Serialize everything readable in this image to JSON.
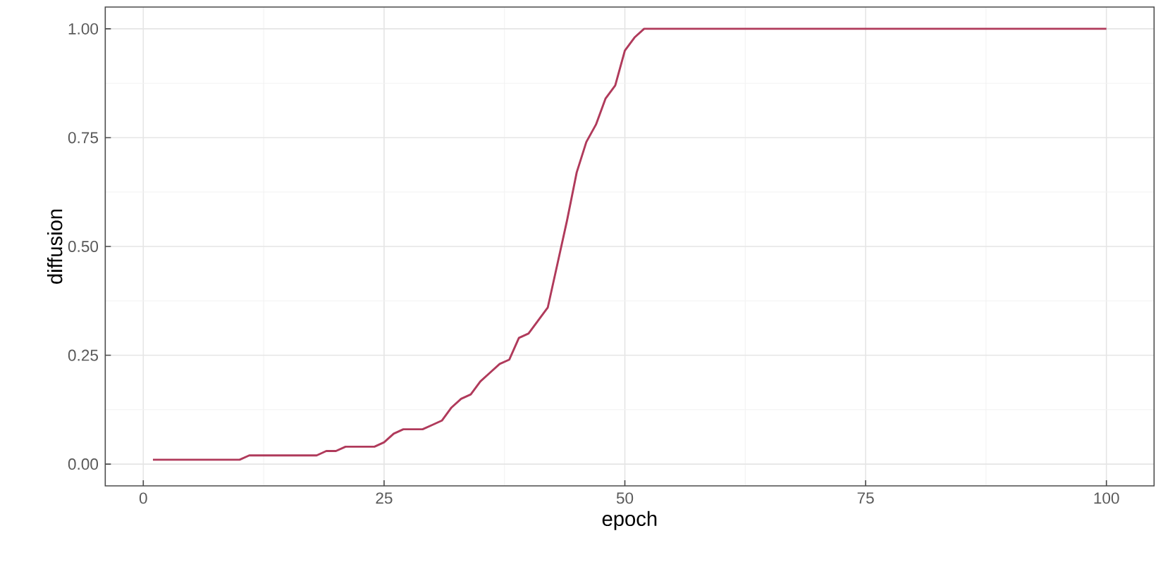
{
  "chart_data": {
    "type": "line",
    "xlabel": "epoch",
    "ylabel": "diffusion",
    "grid": true,
    "xlim": [
      -3.95,
      104.95
    ],
    "ylim": [
      -0.05,
      1.05
    ],
    "xticks": [
      0,
      25,
      50,
      75,
      100
    ],
    "yticks": [
      {
        "value": 0,
        "label": "0.00"
      },
      {
        "value": 0.25,
        "label": "0.25"
      },
      {
        "value": 0.5,
        "label": "0.50"
      },
      {
        "value": 0.75,
        "label": "0.75"
      },
      {
        "value": 1,
        "label": "1.00"
      }
    ],
    "series": [
      {
        "color": "#b03a5b",
        "x": [
          1,
          10,
          11,
          18,
          19,
          20,
          21,
          24,
          25,
          26,
          27,
          29,
          30,
          31,
          32,
          33,
          34,
          35,
          36,
          37,
          38,
          39,
          40,
          41,
          42,
          43,
          44,
          45,
          46,
          47,
          48,
          49,
          50,
          51,
          52,
          100
        ],
        "values": [
          0.01,
          0.01,
          0.02,
          0.02,
          0.03,
          0.03,
          0.04,
          0.04,
          0.05,
          0.07,
          0.08,
          0.08,
          0.09,
          0.1,
          0.13,
          0.15,
          0.16,
          0.19,
          0.21,
          0.23,
          0.24,
          0.29,
          0.3,
          0.33,
          0.36,
          0.46,
          0.56,
          0.67,
          0.74,
          0.78,
          0.84,
          0.87,
          0.95,
          0.98,
          1.0,
          1.0
        ]
      }
    ]
  }
}
